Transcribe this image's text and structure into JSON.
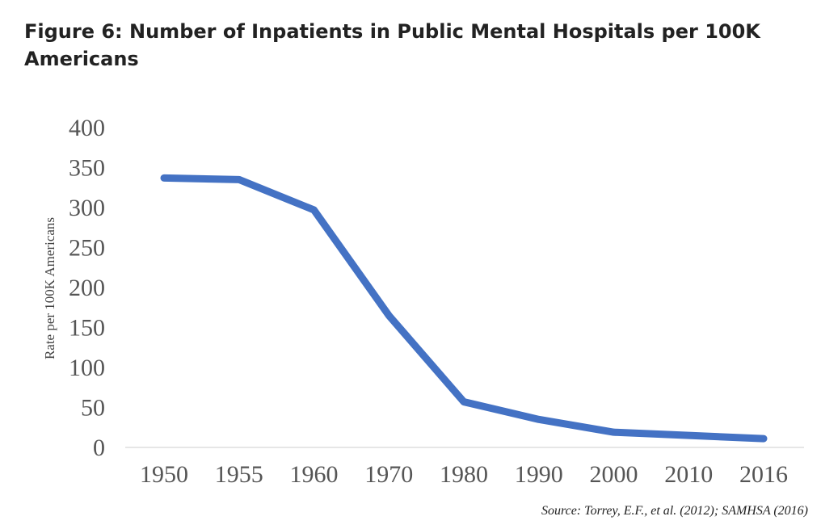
{
  "title": "Figure 6: Number of Inpatients in Public Mental Hospitals per 100K Americans",
  "source": "Source: Torrey, E.F., et al. (2012); SAMHSA (2016)",
  "chart_data": {
    "type": "line",
    "title": "Figure 6: Number of Inpatients in Public Mental Hospitals per 100K Americans",
    "xlabel": "",
    "ylabel": "Rate per 100K Americans",
    "categories": [
      "1950",
      "1955",
      "1960",
      "1970",
      "1980",
      "1990",
      "2000",
      "2010",
      "2016"
    ],
    "series": [
      {
        "values": [
          336,
          334,
          296,
          164,
          56,
          34,
          18,
          14,
          10
        ],
        "color": "#4472C4"
      }
    ],
    "ylim": [
      0,
      400
    ],
    "yticks": [
      0,
      50,
      100,
      150,
      200,
      250,
      300,
      350,
      400
    ],
    "grid": false,
    "legend": "none"
  }
}
